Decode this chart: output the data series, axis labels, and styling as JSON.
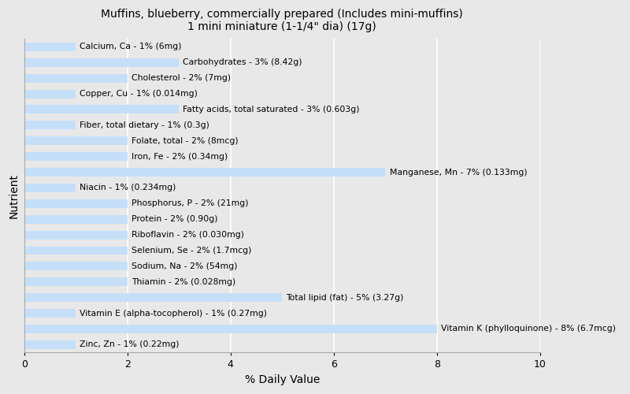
{
  "title_line1": "Muffins, blueberry, commercially prepared (Includes mini-muffins)",
  "title_line2": "1 mini miniature (1-1/4\" dia) (17g)",
  "xlabel": "% Daily Value",
  "ylabel": "Nutrient",
  "xlim": [
    0,
    10
  ],
  "bar_color": "#c5dff8",
  "background_color": "#e8e8e8",
  "nutrients": [
    {
      "label": "Calcium, Ca - 1% (6mg)",
      "value": 1
    },
    {
      "label": "Carbohydrates - 3% (8.42g)",
      "value": 3
    },
    {
      "label": "Cholesterol - 2% (7mg)",
      "value": 2
    },
    {
      "label": "Copper, Cu - 1% (0.014mg)",
      "value": 1
    },
    {
      "label": "Fatty acids, total saturated - 3% (0.603g)",
      "value": 3
    },
    {
      "label": "Fiber, total dietary - 1% (0.3g)",
      "value": 1
    },
    {
      "label": "Folate, total - 2% (8mcg)",
      "value": 2
    },
    {
      "label": "Iron, Fe - 2% (0.34mg)",
      "value": 2
    },
    {
      "label": "Manganese, Mn - 7% (0.133mg)",
      "value": 7
    },
    {
      "label": "Niacin - 1% (0.234mg)",
      "value": 1
    },
    {
      "label": "Phosphorus, P - 2% (21mg)",
      "value": 2
    },
    {
      "label": "Protein - 2% (0.90g)",
      "value": 2
    },
    {
      "label": "Riboflavin - 2% (0.030mg)",
      "value": 2
    },
    {
      "label": "Selenium, Se - 2% (1.7mcg)",
      "value": 2
    },
    {
      "label": "Sodium, Na - 2% (54mg)",
      "value": 2
    },
    {
      "label": "Thiamin - 2% (0.028mg)",
      "value": 2
    },
    {
      "label": "Total lipid (fat) - 5% (3.27g)",
      "value": 5
    },
    {
      "label": "Vitamin E (alpha-tocopherol) - 1% (0.27mg)",
      "value": 1
    },
    {
      "label": "Vitamin K (phylloquinone) - 8% (6.7mcg)",
      "value": 8
    },
    {
      "label": "Zinc, Zn - 1% (0.22mg)",
      "value": 1
    }
  ],
  "label_fontsize": 7.8,
  "title_fontsize": 10,
  "bar_height": 0.55,
  "figsize": [
    8.0,
    5.0
  ],
  "dpi": 100
}
